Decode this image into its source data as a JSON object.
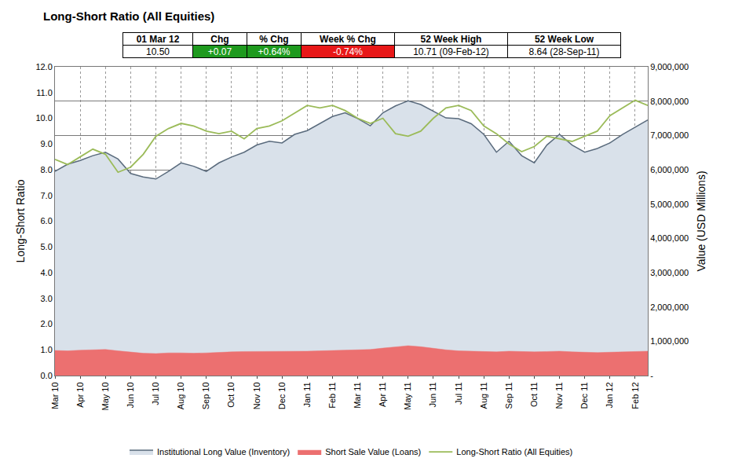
{
  "stats_table": {
    "header": [
      "01 Mar 12",
      "Chg",
      "% Chg",
      "Week % Chg",
      "52 Week High",
      "52 Week Low"
    ],
    "row": [
      "10.50",
      "+0.07",
      "+0.64%",
      "-0.74%",
      "10.71 (09-Feb-12)",
      "8.64 (28-Sep-11)"
    ],
    "cell_colors": [
      null,
      "#1e9a1e",
      "#1e9a1e",
      "#e81818",
      null,
      null
    ]
  },
  "chart_data": {
    "type": "line",
    "title": "Long-Short Ratio (All Equities)",
    "y_label": "Long-Short Ratio",
    "y2_label": "Value (USD Millions)",
    "categories": [
      "Mar 10",
      null,
      "Apr 10",
      null,
      "May 10",
      null,
      "Jun 10",
      null,
      "Jul 10",
      null,
      "Aug 10",
      null,
      "Sep 10",
      null,
      "Oct 10",
      null,
      "Nov 10",
      null,
      "Dec 10",
      null,
      "Jan 11",
      null,
      "Feb 11",
      null,
      "Mar 11",
      null,
      "Apr 11",
      null,
      "May 11",
      null,
      "Jun 11",
      null,
      "Jul 11",
      null,
      "Aug 11",
      null,
      "Sep 11",
      null,
      "Oct 11",
      null,
      "Nov 11",
      null,
      "Dec 11",
      null,
      "Jan 12",
      null,
      "Feb 12",
      null
    ],
    "ylim": [
      0,
      12
    ],
    "yticks": [
      {
        "value": 0,
        "label": "0.0"
      },
      {
        "value": 1,
        "label": "1.0"
      },
      {
        "value": 2,
        "label": "2.0"
      },
      {
        "value": 3,
        "label": "3.0"
      },
      {
        "value": 4,
        "label": "4.0"
      },
      {
        "value": 5,
        "label": "5.0"
      },
      {
        "value": 6,
        "label": "6.0"
      },
      {
        "value": 7,
        "label": "7.0"
      },
      {
        "value": 8,
        "label": "8.0"
      },
      {
        "value": 9,
        "label": "9.0"
      },
      {
        "value": 10,
        "label": "10.0"
      },
      {
        "value": 11,
        "label": "11.0"
      },
      {
        "value": 12,
        "label": "12.0"
      }
    ],
    "y2lim": [
      0,
      9000000
    ],
    "y2ticks": [
      {
        "value": 0,
        "label": "-"
      },
      {
        "value": 1000000,
        "label": "1,000,000"
      },
      {
        "value": 2000000,
        "label": "2,000,000"
      },
      {
        "value": 3000000,
        "label": "3,000,000"
      },
      {
        "value": 4000000,
        "label": "4,000,000"
      },
      {
        "value": 5000000,
        "label": "5,000,000"
      },
      {
        "value": 6000000,
        "label": "6,000,000"
      },
      {
        "value": 7000000,
        "label": "7,000,000"
      },
      {
        "value": 8000000,
        "label": "8,000,000"
      },
      {
        "value": 9000000,
        "label": "9,000,000"
      }
    ],
    "grid": true,
    "legend": "bottom",
    "series": [
      {
        "name": "Institutional Long Value (Inventory)",
        "type": "area",
        "axis": "y2",
        "color": "#d9e1ea",
        "values": [
          5950000,
          6160000,
          6270000,
          6410000,
          6510000,
          6310000,
          5890000,
          5790000,
          5730000,
          5950000,
          6200000,
          6100000,
          5950000,
          6200000,
          6370000,
          6510000,
          6720000,
          6830000,
          6780000,
          7030000,
          7140000,
          7340000,
          7550000,
          7660000,
          7490000,
          7280000,
          7660000,
          7860000,
          8010000,
          7900000,
          7700000,
          7510000,
          7490000,
          7340000,
          7030000,
          6510000,
          6830000,
          6410000,
          6200000,
          6720000,
          7030000,
          6720000,
          6510000,
          6620000,
          6780000,
          7030000,
          7240000,
          7450000
        ]
      },
      {
        "name": "Short Sale Value (Loans)",
        "type": "area",
        "axis": "y2",
        "color": "#ec7070",
        "values": [
          730000,
          720000,
          740000,
          750000,
          760000,
          720000,
          680000,
          650000,
          640000,
          660000,
          660000,
          650000,
          660000,
          680000,
          690000,
          700000,
          700000,
          710000,
          700000,
          710000,
          710000,
          720000,
          730000,
          740000,
          750000,
          760000,
          800000,
          840000,
          870000,
          840000,
          790000,
          750000,
          720000,
          710000,
          700000,
          690000,
          710000,
          700000,
          690000,
          700000,
          710000,
          690000,
          680000,
          670000,
          680000,
          690000,
          700000,
          710000
        ]
      },
      {
        "name": "Long-Short Ratio (All Equities)",
        "type": "line",
        "axis": "y",
        "color": "#9bbb59",
        "values": [
          8.4,
          8.2,
          8.5,
          8.8,
          8.6,
          7.9,
          8.1,
          8.6,
          9.3,
          9.6,
          9.8,
          9.7,
          9.5,
          9.4,
          9.5,
          9.2,
          9.6,
          9.7,
          9.9,
          10.2,
          10.5,
          10.4,
          10.5,
          10.3,
          10.0,
          9.8,
          10.0,
          9.4,
          9.3,
          9.5,
          10.0,
          10.4,
          10.5,
          10.3,
          9.7,
          9.4,
          9.0,
          8.7,
          8.9,
          9.3,
          9.2,
          9.1,
          9.3,
          9.5,
          10.1,
          10.4,
          10.7,
          10.5
        ]
      }
    ]
  }
}
